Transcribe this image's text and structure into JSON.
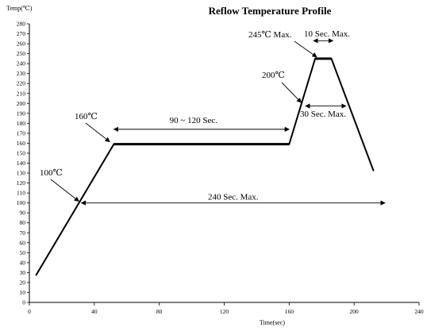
{
  "chart_data": {
    "type": "line",
    "title": "Reflow Temperature Profile",
    "xlabel": "Time(sec)",
    "ylabel": "Temp(℃)",
    "xlim": [
      0,
      240
    ],
    "ylim": [
      0,
      280
    ],
    "xticks": [
      0,
      40,
      80,
      120,
      160,
      200,
      240
    ],
    "yticks": [
      0,
      10,
      20,
      30,
      40,
      50,
      60,
      70,
      80,
      90,
      100,
      110,
      120,
      130,
      140,
      150,
      160,
      170,
      180,
      190,
      200,
      210,
      220,
      230,
      240,
      250,
      260,
      270,
      280
    ],
    "grid": false,
    "series": [
      {
        "x": [
          4,
          52,
          160,
          176,
          186,
          212
        ],
        "y": [
          27,
          159,
          159,
          245,
          245,
          132
        ]
      }
    ],
    "annotations": {
      "t100": {
        "text": "100℃",
        "x": 31,
        "y": 100
      },
      "t160": {
        "text": "160℃",
        "x": 50,
        "y": 159
      },
      "t200": {
        "text": "200℃",
        "x": 168,
        "y": 200
      },
      "t245": {
        "text": "245℃ Max.",
        "x": 177,
        "y": 245
      }
    },
    "spans": {
      "soak": {
        "text": "90 ~ 120 Sec.",
        "x1": 52,
        "x2": 160,
        "y": 174
      },
      "total": {
        "text": "240 Sec. Max.",
        "x1": 32,
        "x2": 219,
        "y": 100
      },
      "liquidus": {
        "text": "30 Sec. Max.",
        "x1": 170,
        "x2": 195,
        "y": 199
      },
      "peak": {
        "text": "10 Sec. Max.",
        "x1": 175,
        "x2": 187,
        "y": 263
      }
    }
  }
}
